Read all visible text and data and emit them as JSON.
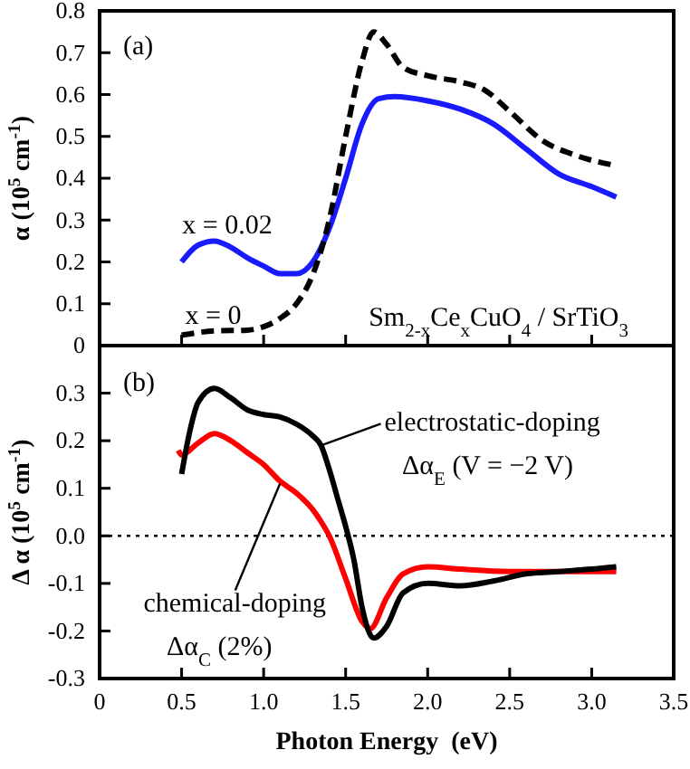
{
  "chart_data": [
    {
      "type": "line",
      "ylabel": "α (10$^{5}$ cm$^{-1}$)",
      "xlim": [
        0,
        3.5
      ],
      "xticks": [
        {
          "value": 0,
          "label": null
        },
        {
          "value": 0.5,
          "label": null
        },
        {
          "value": 1,
          "label": null
        },
        {
          "value": 1.5,
          "label": null
        },
        {
          "value": 2,
          "label": null
        },
        {
          "value": 2.5,
          "label": null
        },
        {
          "value": 3,
          "label": null
        },
        {
          "value": 3.5,
          "label": null
        }
      ],
      "ylim": [
        0,
        0.8
      ],
      "yticks": [
        0,
        0.1,
        0.2,
        0.3,
        0.4,
        0.5,
        0.6,
        0.7,
        0.8
      ],
      "tick_labels": "y",
      "grid": false,
      "series": [
        {
          "color": "#1a1aff",
          "line_style": "solid",
          "x": [
            0.5,
            0.6,
            0.7,
            0.8,
            0.9,
            1.0,
            1.1,
            1.2,
            1.3,
            1.4,
            1.5,
            1.6,
            1.7,
            1.8,
            2.0,
            2.2,
            2.4,
            2.6,
            2.8,
            3.0,
            3.15
          ],
          "values": [
            0.2,
            0.24,
            0.25,
            0.235,
            0.21,
            0.19,
            0.172,
            0.172,
            0.2,
            0.28,
            0.4,
            0.53,
            0.59,
            0.595,
            0.585,
            0.565,
            0.53,
            0.47,
            0.41,
            0.38,
            0.355
          ]
        },
        {
          "color": "#000000",
          "line_style": "dashed",
          "x": [
            0.5,
            0.7,
            0.9,
            1.0,
            1.1,
            1.2,
            1.3,
            1.4,
            1.5,
            1.6,
            1.67,
            1.75,
            1.85,
            2.0,
            2.2,
            2.35,
            2.5,
            2.7,
            2.9,
            3.15
          ],
          "values": [
            0.025,
            0.035,
            0.037,
            0.045,
            0.065,
            0.1,
            0.17,
            0.3,
            0.5,
            0.68,
            0.75,
            0.72,
            0.665,
            0.645,
            0.63,
            0.61,
            0.56,
            0.49,
            0.455,
            0.43
          ]
        }
      ],
      "annotations": [
        "(a)",
        {
          "text": "x = 0.02",
          "x": 0.7,
          "y": 0.25
        },
        {
          "text": "x = 0",
          "x": 0.5,
          "y": 0.025
        },
        "Sm$_{2-x}$Ce$_{x}$CuO$_{4}$ / SrTiO$_{3}$"
      ]
    },
    {
      "type": "line",
      "xlabel": "Photon Energy  (eV)",
      "ylabel": "Δ α (10$^{5}$ cm$^{-1}$)",
      "xlim": [
        0,
        3.5
      ],
      "xticks": [
        0,
        {
          "value": 0.5,
          "label": "0.5"
        },
        {
          "value": 1,
          "label": "1.0"
        },
        {
          "value": 1.5,
          "label": "1.5"
        },
        {
          "value": 2,
          "label": "2.0"
        },
        {
          "value": 2.5,
          "label": "2.5"
        },
        {
          "value": 3,
          "label": "3.0"
        },
        {
          "value": 3.5,
          "label": "3.5"
        }
      ],
      "ylim": [
        -0.3,
        0.4
      ],
      "yticks": [
        -0.3,
        -0.2,
        -0.1,
        {
          "value": 0,
          "label": "0.0"
        },
        0.1,
        0.2,
        0.3
      ],
      "grid": false,
      "ref_lines": [
        {
          "axis": "y",
          "value": 0,
          "color": "#000000",
          "line_style": "dotted"
        }
      ],
      "series": [
        {
          "color": "#ff0000",
          "line_style": "solid",
          "x": [
            0.48,
            0.5,
            0.6,
            0.7,
            0.8,
            0.9,
            1.0,
            1.1,
            1.2,
            1.3,
            1.35,
            1.4,
            1.5,
            1.6,
            1.65,
            1.75,
            1.85,
            2.0,
            2.2,
            2.5,
            2.8,
            3.15
          ],
          "values": [
            0.18,
            0.17,
            0.195,
            0.215,
            0.2,
            0.175,
            0.15,
            0.115,
            0.09,
            0.055,
            0.03,
            0.0,
            -0.09,
            -0.18,
            -0.195,
            -0.13,
            -0.08,
            -0.065,
            -0.07,
            -0.075,
            -0.075,
            -0.075
          ]
        },
        {
          "color": "#000000",
          "line_style": "solid",
          "x": [
            0.5,
            0.55,
            0.6,
            0.7,
            0.8,
            0.9,
            1.0,
            1.1,
            1.2,
            1.3,
            1.35,
            1.4,
            1.45,
            1.5,
            1.55,
            1.6,
            1.67,
            1.75,
            1.85,
            2.0,
            2.2,
            2.4,
            2.6,
            2.8,
            3.0,
            3.15
          ],
          "values": [
            0.13,
            0.22,
            0.28,
            0.31,
            0.29,
            0.265,
            0.255,
            0.25,
            0.235,
            0.21,
            0.19,
            0.14,
            0.08,
            0.02,
            -0.05,
            -0.15,
            -0.215,
            -0.19,
            -0.12,
            -0.1,
            -0.105,
            -0.095,
            -0.08,
            -0.075,
            -0.07,
            -0.065
          ]
        }
      ],
      "annotations": [
        "(b)",
        {
          "text": "electrostatic-doping",
          "x": 1.35,
          "y": 0.19
        },
        "Δα$_{E}$ (V = −2 V)",
        {
          "text": "chemical-doping",
          "x": 1.1,
          "y": 0.11
        },
        "Δα$_{C}$ (2%)"
      ]
    }
  ]
}
